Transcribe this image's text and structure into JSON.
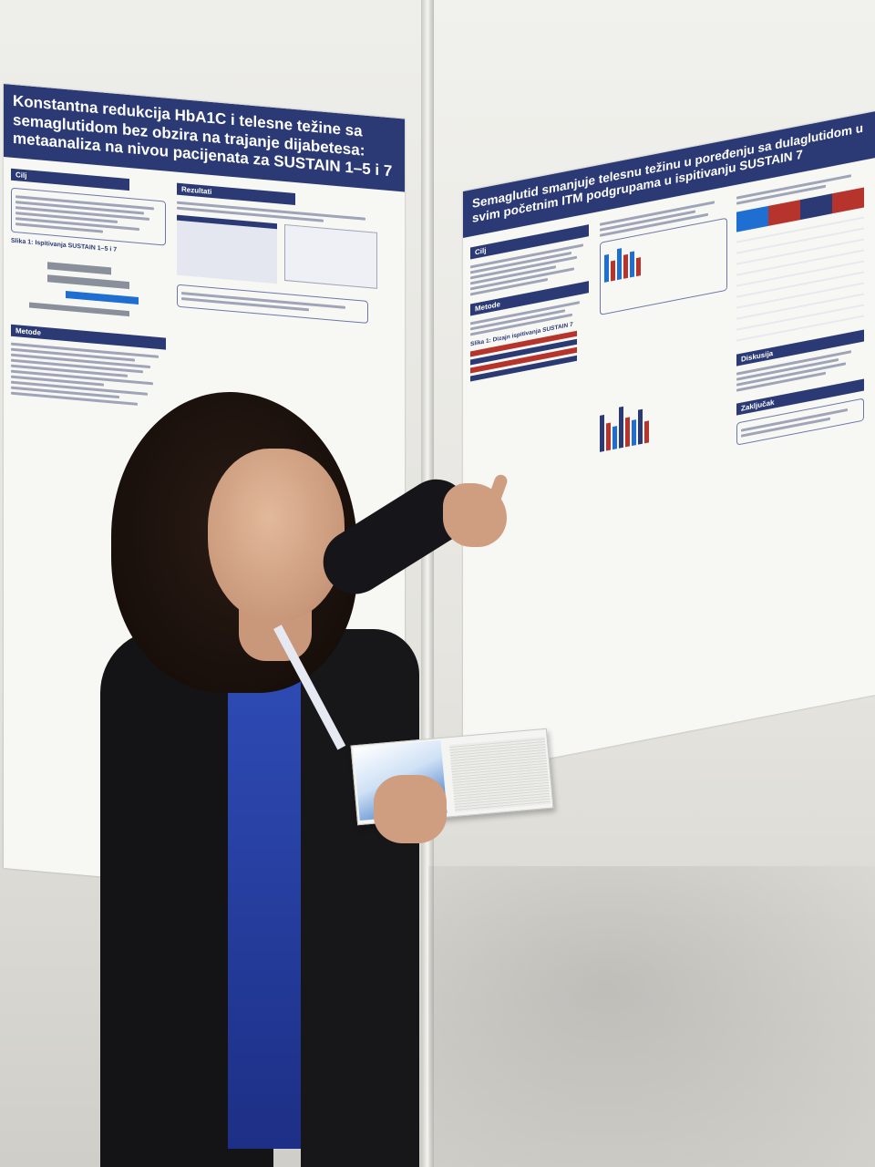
{
  "poster_left": {
    "title": "Konstantna redukcija HbA1C i telesne težine sa semaglutidom bez obzira na trajanje dijabetesa: metaanaliza na nivou pacijenata za SUSTAIN 1–5 i 7",
    "sections": [
      "Cilj",
      "Rezultati",
      "Metode"
    ],
    "figure_label": "Slika 1: Ispitivanja SUSTAIN 1–5 i 7"
  },
  "poster_right": {
    "title": "Semaglutid smanjuje telesnu težinu u poređenju sa dulaglutidom u svim početnim ITM podgrupama u ispitivanju SUSTAIN 7",
    "sections": [
      "Cilj",
      "Metode",
      "Diskusija",
      "Zaključak"
    ],
    "figure_label": "Slika 1: Dizajn ispitivanja SUSTAIN 7"
  },
  "colors": {
    "poster_header": "#2b3a75",
    "accent_blue": "#1e6fd1",
    "accent_red": "#b7342c",
    "blouse": "#2f4db8",
    "jacket": "#141416"
  }
}
